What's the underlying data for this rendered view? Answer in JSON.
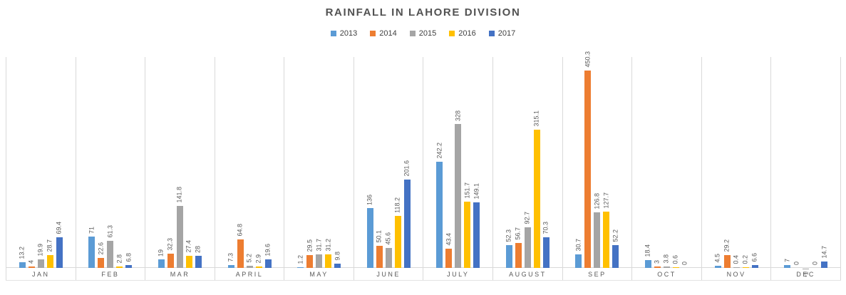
{
  "title": "RAINFALL IN LAHORE DIVISION",
  "chart_data": {
    "type": "bar",
    "title": "RAINFALL IN LAHORE DIVISION",
    "categories": [
      "JAN",
      "FEB",
      "MAR",
      "APRIL",
      "MAY",
      "JUNE",
      "JULY",
      "AUGUST",
      "SEP",
      "OCT",
      "NOV",
      "DEC"
    ],
    "series": [
      {
        "name": "2013",
        "color": "#5B9BD5",
        "values": [
          13.2,
          71,
          19,
          7.3,
          1.2,
          136,
          242.2,
          52.3,
          30.7,
          18.4,
          4.5,
          7
        ]
      },
      {
        "name": "2014",
        "color": "#ED7D31",
        "values": [
          4,
          22.6,
          32.3,
          64.8,
          29.5,
          50.1,
          43.4,
          56.7,
          450.3,
          3,
          29.2,
          0
        ]
      },
      {
        "name": "2015",
        "color": "#A5A5A5",
        "values": [
          19.9,
          61.3,
          141.8,
          5.2,
          31.7,
          45.6,
          328,
          92.7,
          126.8,
          3.8,
          0.4,
          -1
        ]
      },
      {
        "name": "2016",
        "color": "#FFC000",
        "values": [
          28.7,
          2.8,
          27.4,
          2.9,
          31.2,
          118.2,
          151.7,
          315.1,
          127.7,
          0.6,
          0.2,
          0
        ]
      },
      {
        "name": "2017",
        "color": "#4472C4",
        "values": [
          69.4,
          6.8,
          28,
          19.6,
          9.8,
          201.6,
          149.1,
          70.3,
          52.2,
          0,
          6.6,
          14.7
        ]
      }
    ],
    "xlabel": "",
    "ylabel": "",
    "ylim": [
      0,
      483
    ],
    "y_axis_visible": false,
    "data_labels": true,
    "data_label_orientation": "rotated-90",
    "legend_position": "top",
    "gridlines": "vertical-category-separators",
    "gridline_color": "#D9D9D9",
    "text_color": "#595959"
  }
}
